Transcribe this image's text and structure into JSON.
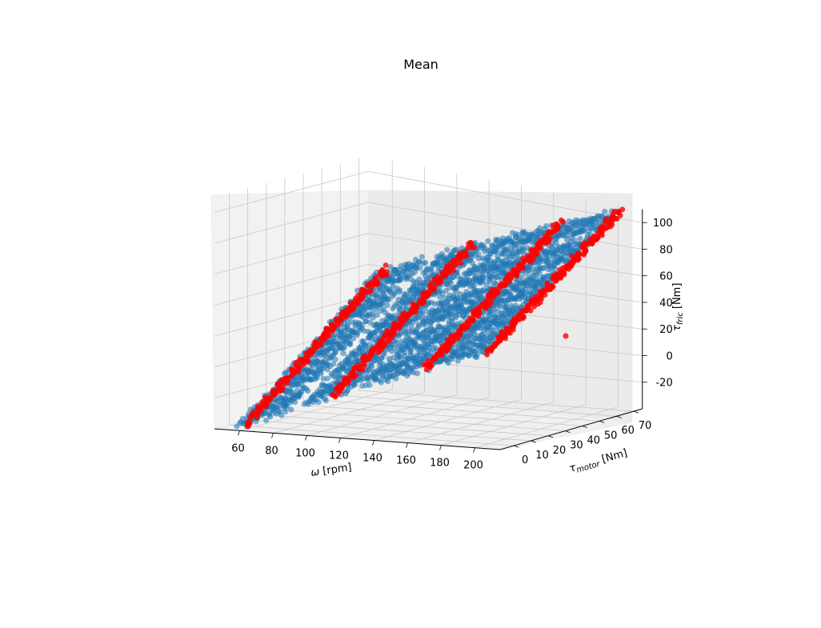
{
  "chart_data": {
    "type": "scatter",
    "projection": "3d",
    "title": "Mean",
    "x_axis": {
      "label_symbol": "ω",
      "label_unit": " [rpm]",
      "ticks": [
        60,
        80,
        100,
        120,
        140,
        160,
        180,
        200
      ],
      "range": [
        45,
        215
      ]
    },
    "y_axis": {
      "label_symbol": "τ",
      "label_subscript": "motor",
      "label_unit": " [Nm]",
      "ticks": [
        0,
        10,
        20,
        30,
        40,
        50,
        60,
        70
      ],
      "range": [
        -8,
        75
      ]
    },
    "z_axis": {
      "label_symbol": "τ",
      "label_subscript": "fric",
      "label_unit": " [Nm]",
      "ticks": [
        -20,
        0,
        20,
        40,
        60,
        80,
        100
      ],
      "range": [
        -40,
        110
      ]
    },
    "grid": true,
    "series": [
      {
        "color": "#1f77b4",
        "marker": "circle",
        "omega_bands": [
          [
            55,
            88
          ],
          [
            95,
            125
          ],
          [
            130,
            165
          ],
          [
            170,
            205
          ]
        ],
        "tau_motor_bands": [
          [
            -5,
            7
          ],
          [
            10,
            22
          ],
          [
            25,
            40
          ],
          [
            44,
            58
          ],
          [
            61,
            72
          ]
        ],
        "surface": "tau_fric = 0.47*omega + 1.0*tau_motor - 60"
      },
      {
        "color": "#ff0000",
        "marker": "circle",
        "omega_lines": [
          60,
          113,
          168,
          205
        ],
        "tau_motor_range": [
          -5,
          72
        ],
        "surface": "tau_fric = 0.47*omega + 1.0*tau_motor - 60",
        "outlier": {
          "omega": 195,
          "tau_motor": 28,
          "tau_fric": 20
        }
      }
    ]
  }
}
